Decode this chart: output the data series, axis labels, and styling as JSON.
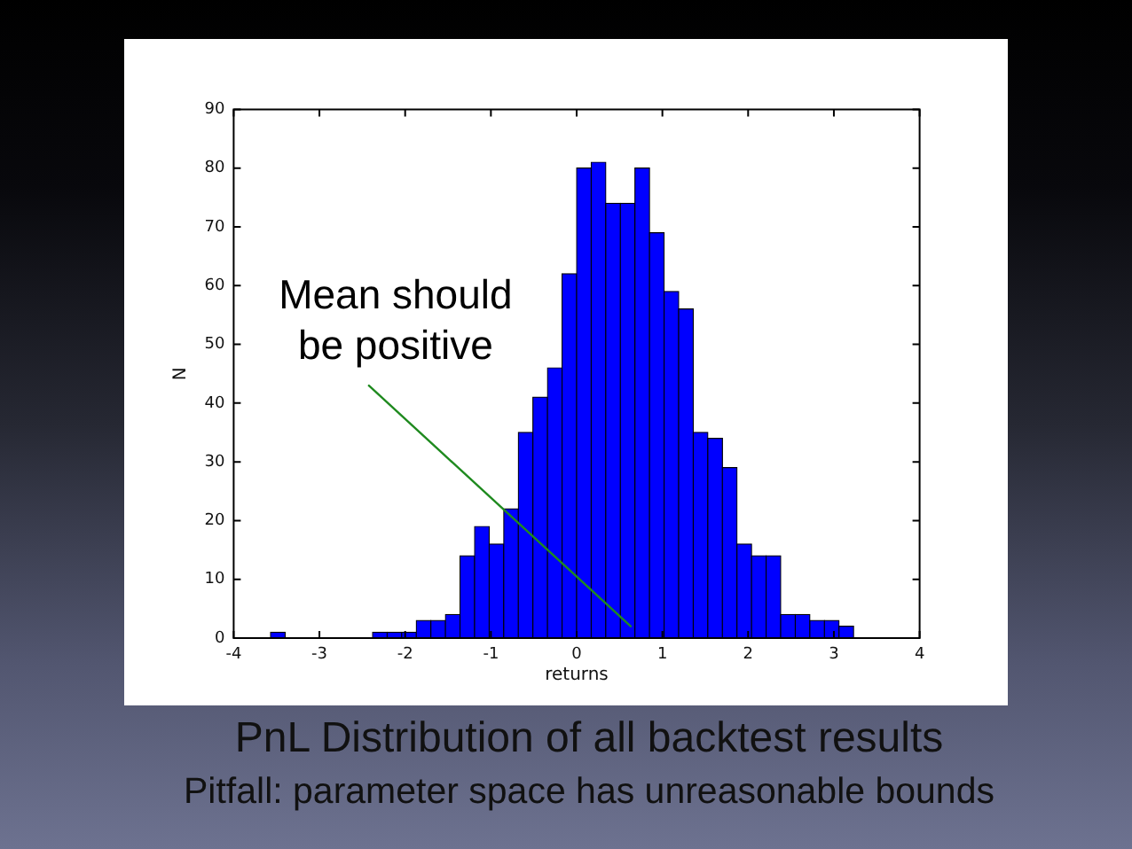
{
  "chart_data": {
    "type": "histogram",
    "title": "PnL Distribution of all backtest results",
    "subtitle": "Pitfall: parameter space has unreasonable bounds",
    "xlabel": "returns",
    "ylabel": "N",
    "bins": [
      -3.57,
      -3.4,
      -3.23,
      -3.06,
      -2.89,
      -2.72,
      -2.55,
      -2.38,
      -2.21,
      -2.04,
      -1.87,
      -1.7,
      -1.53,
      -1.36,
      -1.19,
      -1.02,
      -0.85,
      -0.68,
      -0.51,
      -0.34,
      -0.17,
      0,
      0.17,
      0.34,
      0.51,
      0.68,
      0.85,
      1.02,
      1.19,
      1.36,
      1.53,
      1.7,
      1.87,
      2.04,
      2.21,
      2.38,
      2.55,
      2.72,
      2.89,
      3.06,
      3.23
    ],
    "values": [
      1,
      0,
      0,
      0,
      0,
      0,
      0,
      1,
      1,
      1,
      3,
      3,
      4,
      14,
      19,
      16,
      22,
      35,
      41,
      46,
      62,
      80,
      81,
      74,
      74,
      80,
      69,
      59,
      56,
      35,
      34,
      29,
      16,
      14,
      14,
      4,
      4,
      3,
      3,
      2
    ],
    "color": "#0000ff",
    "xlim": [
      -4,
      4
    ],
    "xticks": [
      -4,
      -3,
      -2,
      -1,
      0,
      1,
      2,
      3,
      4
    ],
    "ylim": [
      0,
      90
    ],
    "yticks": [
      0,
      10,
      20,
      30,
      40,
      50,
      60,
      70,
      80,
      90
    ],
    "annotations": [
      {
        "text": "Mean should be positive",
        "x": 0.63,
        "y": 2
      }
    ]
  }
}
